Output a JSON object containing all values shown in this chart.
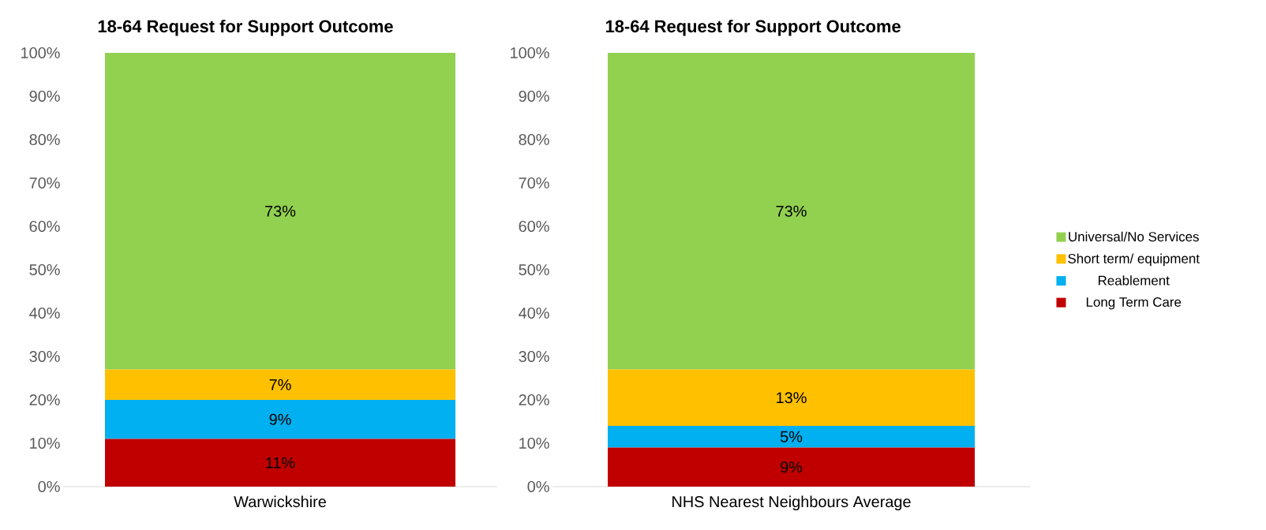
{
  "chart_data": [
    {
      "type": "bar",
      "title": "18-64 Request for Support Outcome",
      "categories": [
        "Warwickshire"
      ],
      "stacked": true,
      "legend": false,
      "ylim": [
        0,
        100
      ],
      "yticks": [
        {
          "value": 0,
          "label": "0%"
        },
        {
          "value": 10,
          "label": "10%"
        },
        {
          "value": 20,
          "label": "20%"
        },
        {
          "value": 30,
          "label": "30%"
        },
        {
          "value": 40,
          "label": "40%"
        },
        {
          "value": 50,
          "label": "50%"
        },
        {
          "value": 60,
          "label": "60%"
        },
        {
          "value": 70,
          "label": "70%"
        },
        {
          "value": 80,
          "label": "80%"
        },
        {
          "value": 90,
          "label": "90%"
        },
        {
          "value": 100,
          "label": "100%"
        }
      ],
      "series": [
        {
          "color": "#c00000",
          "values": [
            11
          ],
          "value_labels": [
            "11%"
          ]
        },
        {
          "color": "#00b0f0",
          "values": [
            9
          ],
          "value_labels": [
            "9%"
          ]
        },
        {
          "color": "#ffc000",
          "values": [
            7
          ],
          "value_labels": [
            "7%"
          ]
        },
        {
          "color": "#92d050",
          "values": [
            73
          ],
          "value_labels": [
            "73%"
          ]
        }
      ]
    },
    {
      "type": "bar",
      "title": "18-64 Request for Support Outcome",
      "categories": [
        "NHS Nearest Neighbours Average"
      ],
      "stacked": true,
      "legend": "right",
      "ylim": [
        0,
        100
      ],
      "yticks": [
        {
          "value": 0,
          "label": "0%"
        },
        {
          "value": 10,
          "label": "10%"
        },
        {
          "value": 20,
          "label": "20%"
        },
        {
          "value": 30,
          "label": "30%"
        },
        {
          "value": 40,
          "label": "40%"
        },
        {
          "value": 50,
          "label": "50%"
        },
        {
          "value": 60,
          "label": "60%"
        },
        {
          "value": 70,
          "label": "70%"
        },
        {
          "value": 80,
          "label": "80%"
        },
        {
          "value": 90,
          "label": "90%"
        },
        {
          "value": 100,
          "label": "100%"
        }
      ],
      "series": [
        {
          "name": "Long Term Care",
          "color": "#c00000",
          "values": [
            9
          ],
          "value_labels": [
            "9%"
          ]
        },
        {
          "name": "Reablement",
          "color": "#00b0f0",
          "values": [
            5
          ],
          "value_labels": [
            "5%"
          ]
        },
        {
          "name": "Short term/ equipment",
          "color": "#ffc000",
          "values": [
            13
          ],
          "value_labels": [
            "13%"
          ]
        },
        {
          "name": "Universal/No Services",
          "color": "#92d050",
          "values": [
            73
          ],
          "value_labels": [
            "73%"
          ]
        }
      ]
    }
  ]
}
